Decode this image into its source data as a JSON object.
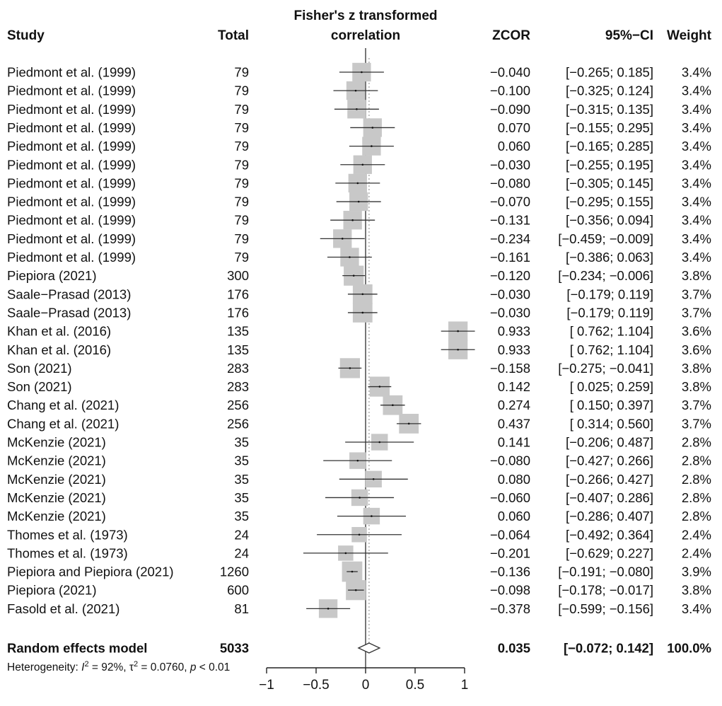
{
  "chart_data": {
    "type": "forest",
    "header": {
      "study": "Study",
      "total": "Total",
      "plot_title_line1": "Fisher's z transformed",
      "plot_title_line2": "correlation",
      "zcor": "ZCOR",
      "ci": "95%−CI",
      "weight": "Weight"
    },
    "x_axis": {
      "xlim": [
        -1,
        1
      ],
      "ticks": [
        -1,
        -0.5,
        0,
        0.5,
        1
      ],
      "tick_labels": [
        "−1",
        "−0.5",
        "0",
        "0.5",
        "1"
      ]
    },
    "studies": [
      {
        "study": "Piedmont et al. (1999)",
        "total": "79",
        "zcor": -0.04,
        "lower": -0.265,
        "upper": 0.185,
        "zcor_text": "−0.040",
        "ci_text": "[−0.265;  0.185]",
        "weight": "3.4%"
      },
      {
        "study": "Piedmont et al. (1999)",
        "total": "79",
        "zcor": -0.1,
        "lower": -0.325,
        "upper": 0.124,
        "zcor_text": "−0.100",
        "ci_text": "[−0.325;  0.124]",
        "weight": "3.4%"
      },
      {
        "study": "Piedmont et al. (1999)",
        "total": "79",
        "zcor": -0.09,
        "lower": -0.315,
        "upper": 0.135,
        "zcor_text": "−0.090",
        "ci_text": "[−0.315;  0.135]",
        "weight": "3.4%"
      },
      {
        "study": "Piedmont et al. (1999)",
        "total": "79",
        "zcor": 0.07,
        "lower": -0.155,
        "upper": 0.295,
        "zcor_text": "0.070",
        "ci_text": "[−0.155;  0.295]",
        "weight": "3.4%"
      },
      {
        "study": "Piedmont et al. (1999)",
        "total": "79",
        "zcor": 0.06,
        "lower": -0.165,
        "upper": 0.285,
        "zcor_text": "0.060",
        "ci_text": "[−0.165;  0.285]",
        "weight": "3.4%"
      },
      {
        "study": "Piedmont et al. (1999)",
        "total": "79",
        "zcor": -0.03,
        "lower": -0.255,
        "upper": 0.195,
        "zcor_text": "−0.030",
        "ci_text": "[−0.255;  0.195]",
        "weight": "3.4%"
      },
      {
        "study": "Piedmont et al. (1999)",
        "total": "79",
        "zcor": -0.08,
        "lower": -0.305,
        "upper": 0.145,
        "zcor_text": "−0.080",
        "ci_text": "[−0.305;  0.145]",
        "weight": "3.4%"
      },
      {
        "study": "Piedmont et al. (1999)",
        "total": "79",
        "zcor": -0.07,
        "lower": -0.295,
        "upper": 0.155,
        "zcor_text": "−0.070",
        "ci_text": "[−0.295;  0.155]",
        "weight": "3.4%"
      },
      {
        "study": "Piedmont et al. (1999)",
        "total": "79",
        "zcor": -0.131,
        "lower": -0.356,
        "upper": 0.094,
        "zcor_text": "−0.131",
        "ci_text": "[−0.356;  0.094]",
        "weight": "3.4%"
      },
      {
        "study": "Piedmont et al. (1999)",
        "total": "79",
        "zcor": -0.234,
        "lower": -0.459,
        "upper": -0.009,
        "zcor_text": "−0.234",
        "ci_text": "[−0.459; −0.009]",
        "weight": "3.4%"
      },
      {
        "study": "Piedmont et al. (1999)",
        "total": "79",
        "zcor": -0.161,
        "lower": -0.386,
        "upper": 0.063,
        "zcor_text": "−0.161",
        "ci_text": "[−0.386;  0.063]",
        "weight": "3.4%"
      },
      {
        "study": "Piepiora (2021)",
        "total": "300",
        "zcor": -0.12,
        "lower": -0.234,
        "upper": -0.006,
        "zcor_text": "−0.120",
        "ci_text": "[−0.234; −0.006]",
        "weight": "3.8%"
      },
      {
        "study": "Saale−Prasad (2013)",
        "total": "176",
        "zcor": -0.03,
        "lower": -0.179,
        "upper": 0.119,
        "zcor_text": "−0.030",
        "ci_text": "[−0.179;  0.119]",
        "weight": "3.7%"
      },
      {
        "study": "Saale−Prasad (2013)",
        "total": "176",
        "zcor": -0.03,
        "lower": -0.179,
        "upper": 0.119,
        "zcor_text": "−0.030",
        "ci_text": "[−0.179;  0.119]",
        "weight": "3.7%"
      },
      {
        "study": "Khan et al.  (2016)",
        "total": "135",
        "zcor": 0.933,
        "lower": 0.762,
        "upper": 1.104,
        "zcor_text": "0.933",
        "ci_text": "[ 0.762;  1.104]",
        "weight": "3.6%"
      },
      {
        "study": "Khan et al. (2016)",
        "total": "135",
        "zcor": 0.933,
        "lower": 0.762,
        "upper": 1.104,
        "zcor_text": "0.933",
        "ci_text": "[ 0.762;  1.104]",
        "weight": "3.6%"
      },
      {
        "study": "Son (2021)",
        "total": "283",
        "zcor": -0.158,
        "lower": -0.275,
        "upper": -0.041,
        "zcor_text": "−0.158",
        "ci_text": "[−0.275; −0.041]",
        "weight": "3.8%"
      },
      {
        "study": "Son (2021)",
        "total": "283",
        "zcor": 0.142,
        "lower": 0.025,
        "upper": 0.259,
        "zcor_text": "0.142",
        "ci_text": "[ 0.025;  0.259]",
        "weight": "3.8%"
      },
      {
        "study": "Chang et al. (2021)",
        "total": "256",
        "zcor": 0.274,
        "lower": 0.15,
        "upper": 0.397,
        "zcor_text": "0.274",
        "ci_text": "[ 0.150;  0.397]",
        "weight": "3.7%"
      },
      {
        "study": "Chang et al. (2021)",
        "total": "256",
        "zcor": 0.437,
        "lower": 0.314,
        "upper": 0.56,
        "zcor_text": "0.437",
        "ci_text": "[ 0.314;  0.560]",
        "weight": "3.7%"
      },
      {
        "study": "McKenzie (2021)",
        "total": "35",
        "zcor": 0.141,
        "lower": -0.206,
        "upper": 0.487,
        "zcor_text": "0.141",
        "ci_text": "[−0.206;  0.487]",
        "weight": "2.8%"
      },
      {
        "study": "McKenzie (2021)",
        "total": "35",
        "zcor": -0.08,
        "lower": -0.427,
        "upper": 0.266,
        "zcor_text": "−0.080",
        "ci_text": "[−0.427;  0.266]",
        "weight": "2.8%"
      },
      {
        "study": "McKenzie (2021)",
        "total": "35",
        "zcor": 0.08,
        "lower": -0.266,
        "upper": 0.427,
        "zcor_text": "0.080",
        "ci_text": "[−0.266;  0.427]",
        "weight": "2.8%"
      },
      {
        "study": "McKenzie (2021)",
        "total": "35",
        "zcor": -0.06,
        "lower": -0.407,
        "upper": 0.286,
        "zcor_text": "−0.060",
        "ci_text": "[−0.407;  0.286]",
        "weight": "2.8%"
      },
      {
        "study": "McKenzie (2021)",
        "total": "35",
        "zcor": 0.06,
        "lower": -0.286,
        "upper": 0.407,
        "zcor_text": "0.060",
        "ci_text": "[−0.286;  0.407]",
        "weight": "2.8%"
      },
      {
        "study": "Thomes et al. (1973)",
        "total": "24",
        "zcor": -0.064,
        "lower": -0.492,
        "upper": 0.364,
        "zcor_text": "−0.064",
        "ci_text": "[−0.492;  0.364]",
        "weight": "2.4%"
      },
      {
        "study": "Thomes et al. (1973)",
        "total": "24",
        "zcor": -0.201,
        "lower": -0.629,
        "upper": 0.227,
        "zcor_text": "−0.201",
        "ci_text": "[−0.629;  0.227]",
        "weight": "2.4%"
      },
      {
        "study": "Piepiora and Piepiora (2021)",
        "total": "1260",
        "zcor": -0.136,
        "lower": -0.191,
        "upper": -0.08,
        "zcor_text": "−0.136",
        "ci_text": "[−0.191; −0.080]",
        "weight": "3.9%"
      },
      {
        "study": "Piepiora (2021)",
        "total": "600",
        "zcor": -0.098,
        "lower": -0.178,
        "upper": -0.017,
        "zcor_text": "−0.098",
        "ci_text": "[−0.178; −0.017]",
        "weight": "3.8%"
      },
      {
        "study": "Fasold et al. (2021)",
        "total": "81",
        "zcor": -0.378,
        "lower": -0.599,
        "upper": -0.156,
        "zcor_text": "−0.378",
        "ci_text": "[−0.599; −0.156]",
        "weight": "3.4%"
      }
    ],
    "pooled": {
      "label": "Random effects model",
      "total": "5033",
      "zcor": 0.035,
      "lower": -0.072,
      "upper": 0.142,
      "zcor_text": "0.035",
      "ci_text": "[−0.072;  0.142]",
      "weight": "100.0%"
    },
    "heterogeneity": {
      "prefix": "Heterogeneity: ",
      "i2_symbol": "I",
      "i2_sup": "2",
      "i2_value": " = 92%, ",
      "tau2_symbol": "τ",
      "tau2_sup": "2",
      "tau2_value": " = 0.0760, ",
      "p_symbol": "p",
      "p_value": " < 0.01"
    },
    "colors": {
      "box": "#c8c8c8",
      "line": "#333333",
      "text": "#111111",
      "ref_line": "#555555",
      "pooled_line": "#9a9a9a"
    }
  }
}
